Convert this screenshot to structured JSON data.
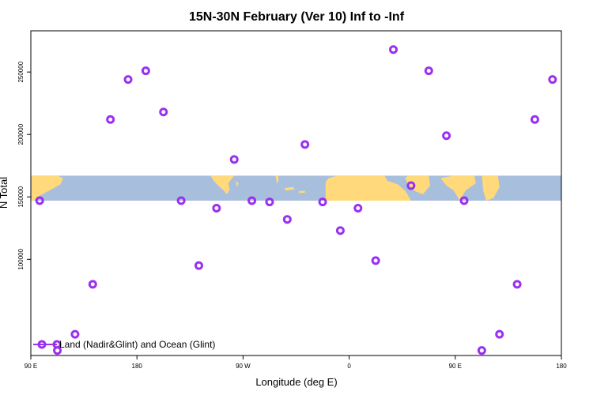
{
  "chart_data": {
    "type": "scatter",
    "title": "15N-30N February (Ver 10)   Inf to -Inf",
    "xlabel": "Longitude (deg E)",
    "ylabel": "N Total",
    "xlim": [
      -90,
      270
    ],
    "ylim": [
      23000,
      283000
    ],
    "grid": false,
    "x_ticks": [
      {
        "value": -90,
        "label": "90 E"
      },
      {
        "value": -18,
        "label": "180"
      },
      {
        "value": 54,
        "label": "90 W"
      },
      {
        "value": 126,
        "label": "0"
      },
      {
        "value": 198,
        "label": "90 E"
      },
      {
        "value": 270,
        "label": "180"
      }
    ],
    "y_ticks": [
      {
        "value": 100000,
        "label": "100000"
      },
      {
        "value": 150000,
        "label": "150000"
      },
      {
        "value": 200000,
        "label": "200000"
      },
      {
        "value": 250000,
        "label": "250000"
      }
    ],
    "background_map": {
      "description": "world land/ocean strip",
      "ylim": [
        147000,
        167000
      ],
      "land_color": "#ffd97a",
      "ocean_color": "#a7bedc"
    },
    "series": [
      {
        "name": "Land (Nadir&Glint) and Ocean (Glint)",
        "color": "#9b30f0",
        "marker": "circle-open",
        "x": [
          -84,
          -72,
          -60,
          -48,
          -36,
          -24,
          -12,
          0,
          12,
          24,
          36,
          48,
          60,
          72,
          84,
          96,
          108,
          120,
          132,
          144,
          156,
          168,
          180,
          192,
          204,
          216,
          228,
          240,
          252,
          264
        ],
        "y": [
          147000,
          27000,
          40000,
          80000,
          212000,
          244000,
          251000,
          218000,
          147000,
          95000,
          141000,
          180000,
          147000,
          146000,
          132000,
          192000,
          146000,
          123000,
          141000,
          99000,
          268000,
          159000,
          251000,
          199000,
          147000,
          27000,
          40000,
          80000,
          212000,
          244000
        ]
      }
    ],
    "legend": {
      "position": "bottom-left",
      "label": "Land (Nadir&Glint) and Ocean (Glint)"
    }
  }
}
